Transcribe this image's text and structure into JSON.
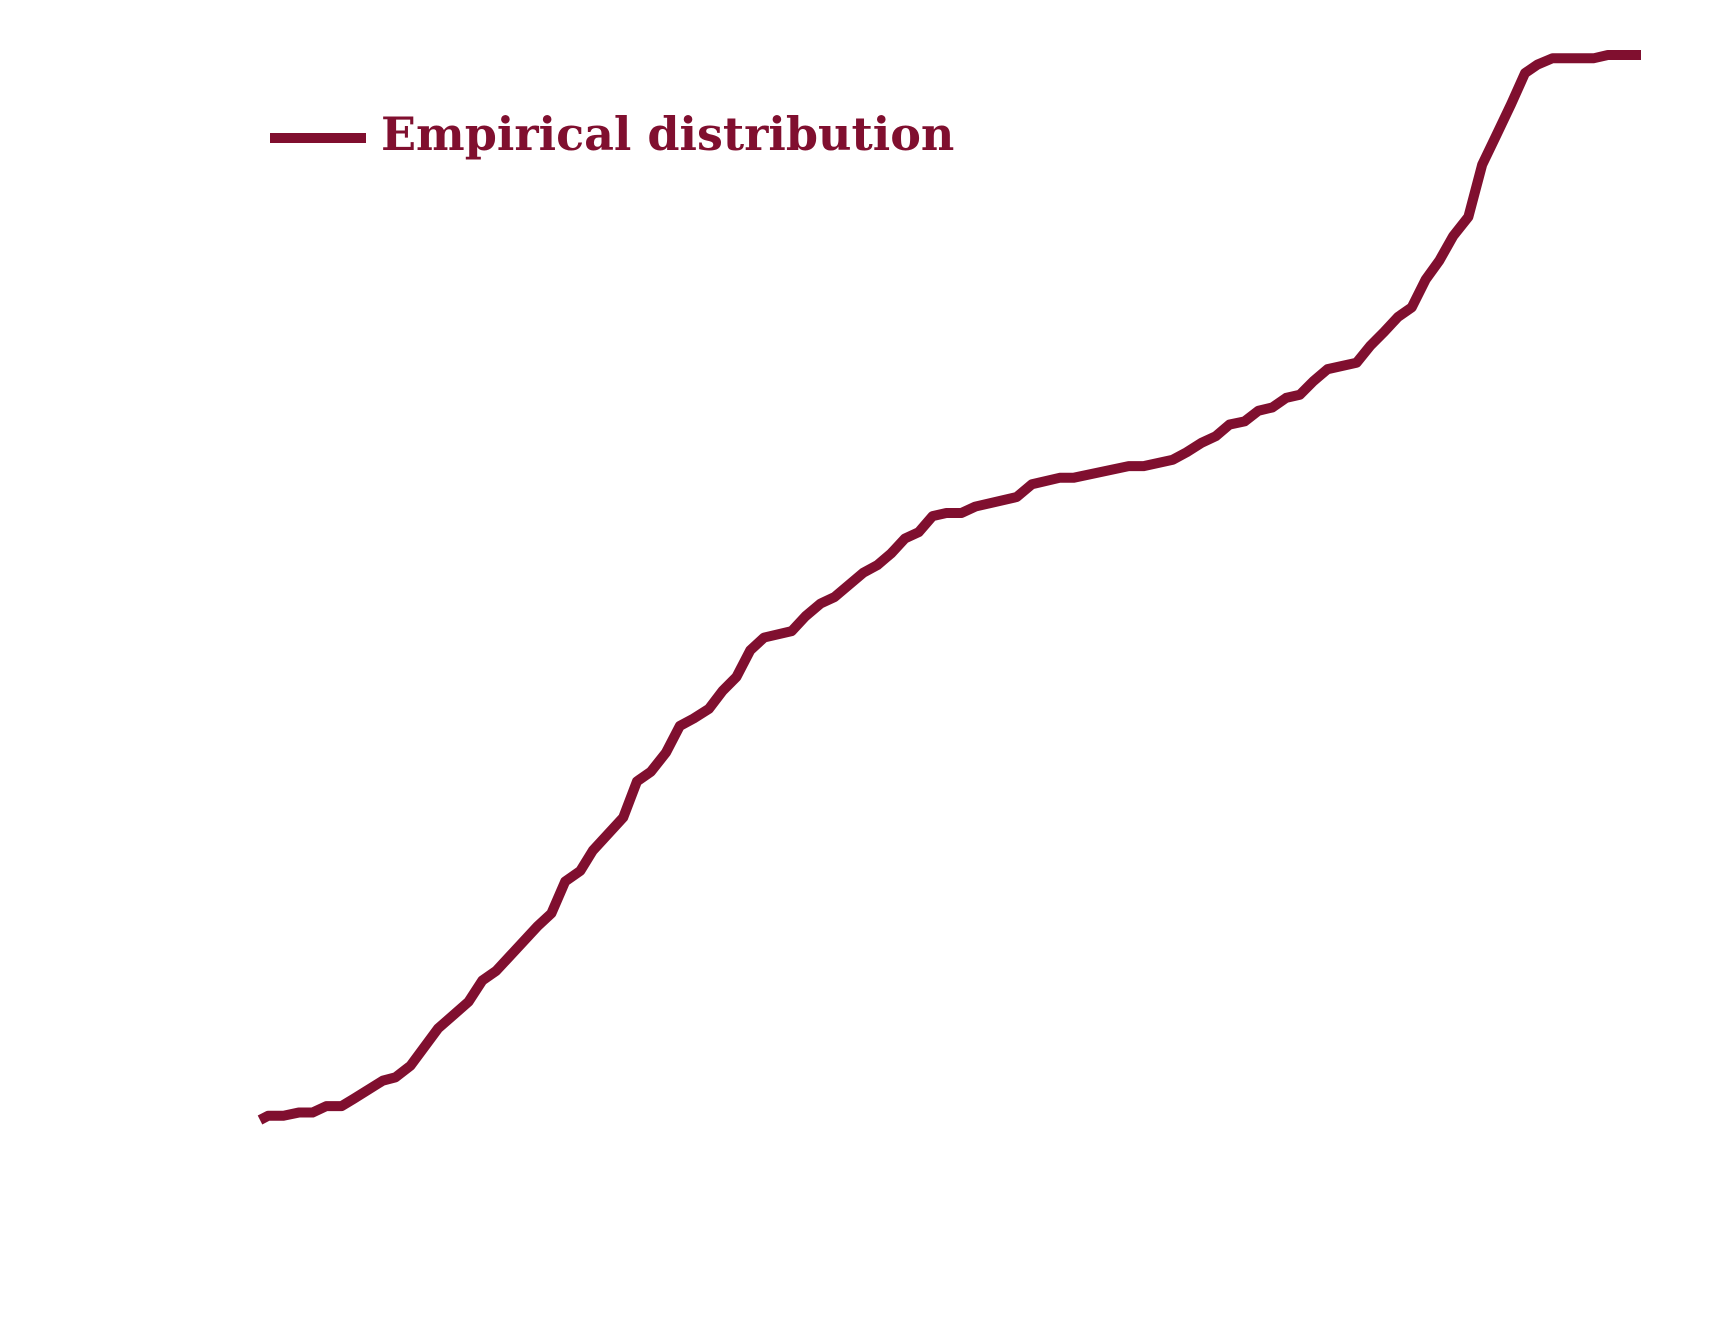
{
  "chart_data": {
    "type": "line",
    "x": [
      0,
      0.6,
      1.7,
      2.8,
      3.8,
      4.8,
      5.9,
      6.8,
      8.9,
      9.8,
      10.9,
      12.9,
      15.1,
      16.1,
      17.1,
      20.1,
      21.1,
      22.1,
      23.2,
      24.1,
      26.3,
      27.3,
      28.3,
      29.4,
      30.4,
      31.4,
      32.5,
      33.5,
      34.5,
      35.5,
      36.5,
      38.5,
      39.5,
      40.6,
      41.6,
      43.7,
      44.7,
      45.7,
      46.7,
      47.7,
      48.7,
      49.7,
      50.8,
      51.8,
      54.8,
      55.9,
      57.9,
      58.9,
      62.9,
      64.0,
      66.1,
      67.1,
      68.2,
      69.2,
      70.2,
      71.3,
      72.3,
      73.3,
      74.3,
      75.3,
      76.3,
      77.3,
      79.4,
      80.4,
      81.4,
      82.4,
      83.4,
      84.4,
      85.4,
      86.4,
      87.5,
      88.5,
      89.5,
      90.6,
      91.6,
      92.5,
      93.6,
      96.6,
      97.6,
      100
    ],
    "series": [
      {
        "name": "Empirical distribution",
        "color": "#800f2f",
        "values": [
          0,
          0.004,
          0.004,
          0.007,
          0.007,
          0.013,
          0.013,
          0.02,
          0.037,
          0.04,
          0.051,
          0.086,
          0.111,
          0.131,
          0.14,
          0.182,
          0.194,
          0.224,
          0.234,
          0.253,
          0.284,
          0.318,
          0.327,
          0.345,
          0.37,
          0.377,
          0.386,
          0.403,
          0.416,
          0.441,
          0.453,
          0.459,
          0.473,
          0.485,
          0.491,
          0.514,
          0.521,
          0.532,
          0.546,
          0.552,
          0.567,
          0.57,
          0.57,
          0.576,
          0.585,
          0.597,
          0.603,
          0.603,
          0.614,
          0.614,
          0.62,
          0.627,
          0.636,
          0.642,
          0.653,
          0.656,
          0.666,
          0.669,
          0.678,
          0.681,
          0.694,
          0.705,
          0.711,
          0.727,
          0.74,
          0.754,
          0.763,
          0.789,
          0.807,
          0.83,
          0.848,
          0.897,
          0.924,
          0.954,
          0.983,
          0.991,
          0.997,
          0.997,
          1,
          1
        ]
      }
    ],
    "xlim": [
      0,
      100
    ],
    "ylim": [
      0,
      1
    ],
    "legend": "upper left"
  }
}
